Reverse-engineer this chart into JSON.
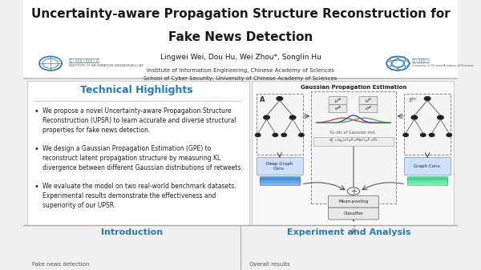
{
  "title_line1": "Uncertainty-aware Propagation Structure Reconstruction for",
  "title_line2": "Fake News Detection",
  "title_fontsize": 11,
  "author_line": "Lingwei Wei, Dou Hu, Wei Zhou*, Songlin Hu",
  "affil_line1": "Institute of Information Engineering, Chinese Academy of Sciences",
  "affil_line2": "School of Cyber Security, University of Chinese Academy of Sciences",
  "author_fontsize": 6.5,
  "affil_fontsize": 5,
  "bg_color": "#f0f0f0",
  "header_bg": "#ffffff",
  "header_border": "#bbbbbb",
  "section_title_color": "#2a7ab5",
  "section_left_title": "Technical Highlights",
  "section_right_top_title": "Gaussian Propagation Estimation",
  "section_bottom_left_title": "Introduction",
  "section_bottom_right_title": "Experiment and Analysis",
  "bottom_left_subtitle": "Fake news detection",
  "bottom_right_subtitle": "Overall results",
  "divider_color": "#aaaaaa"
}
